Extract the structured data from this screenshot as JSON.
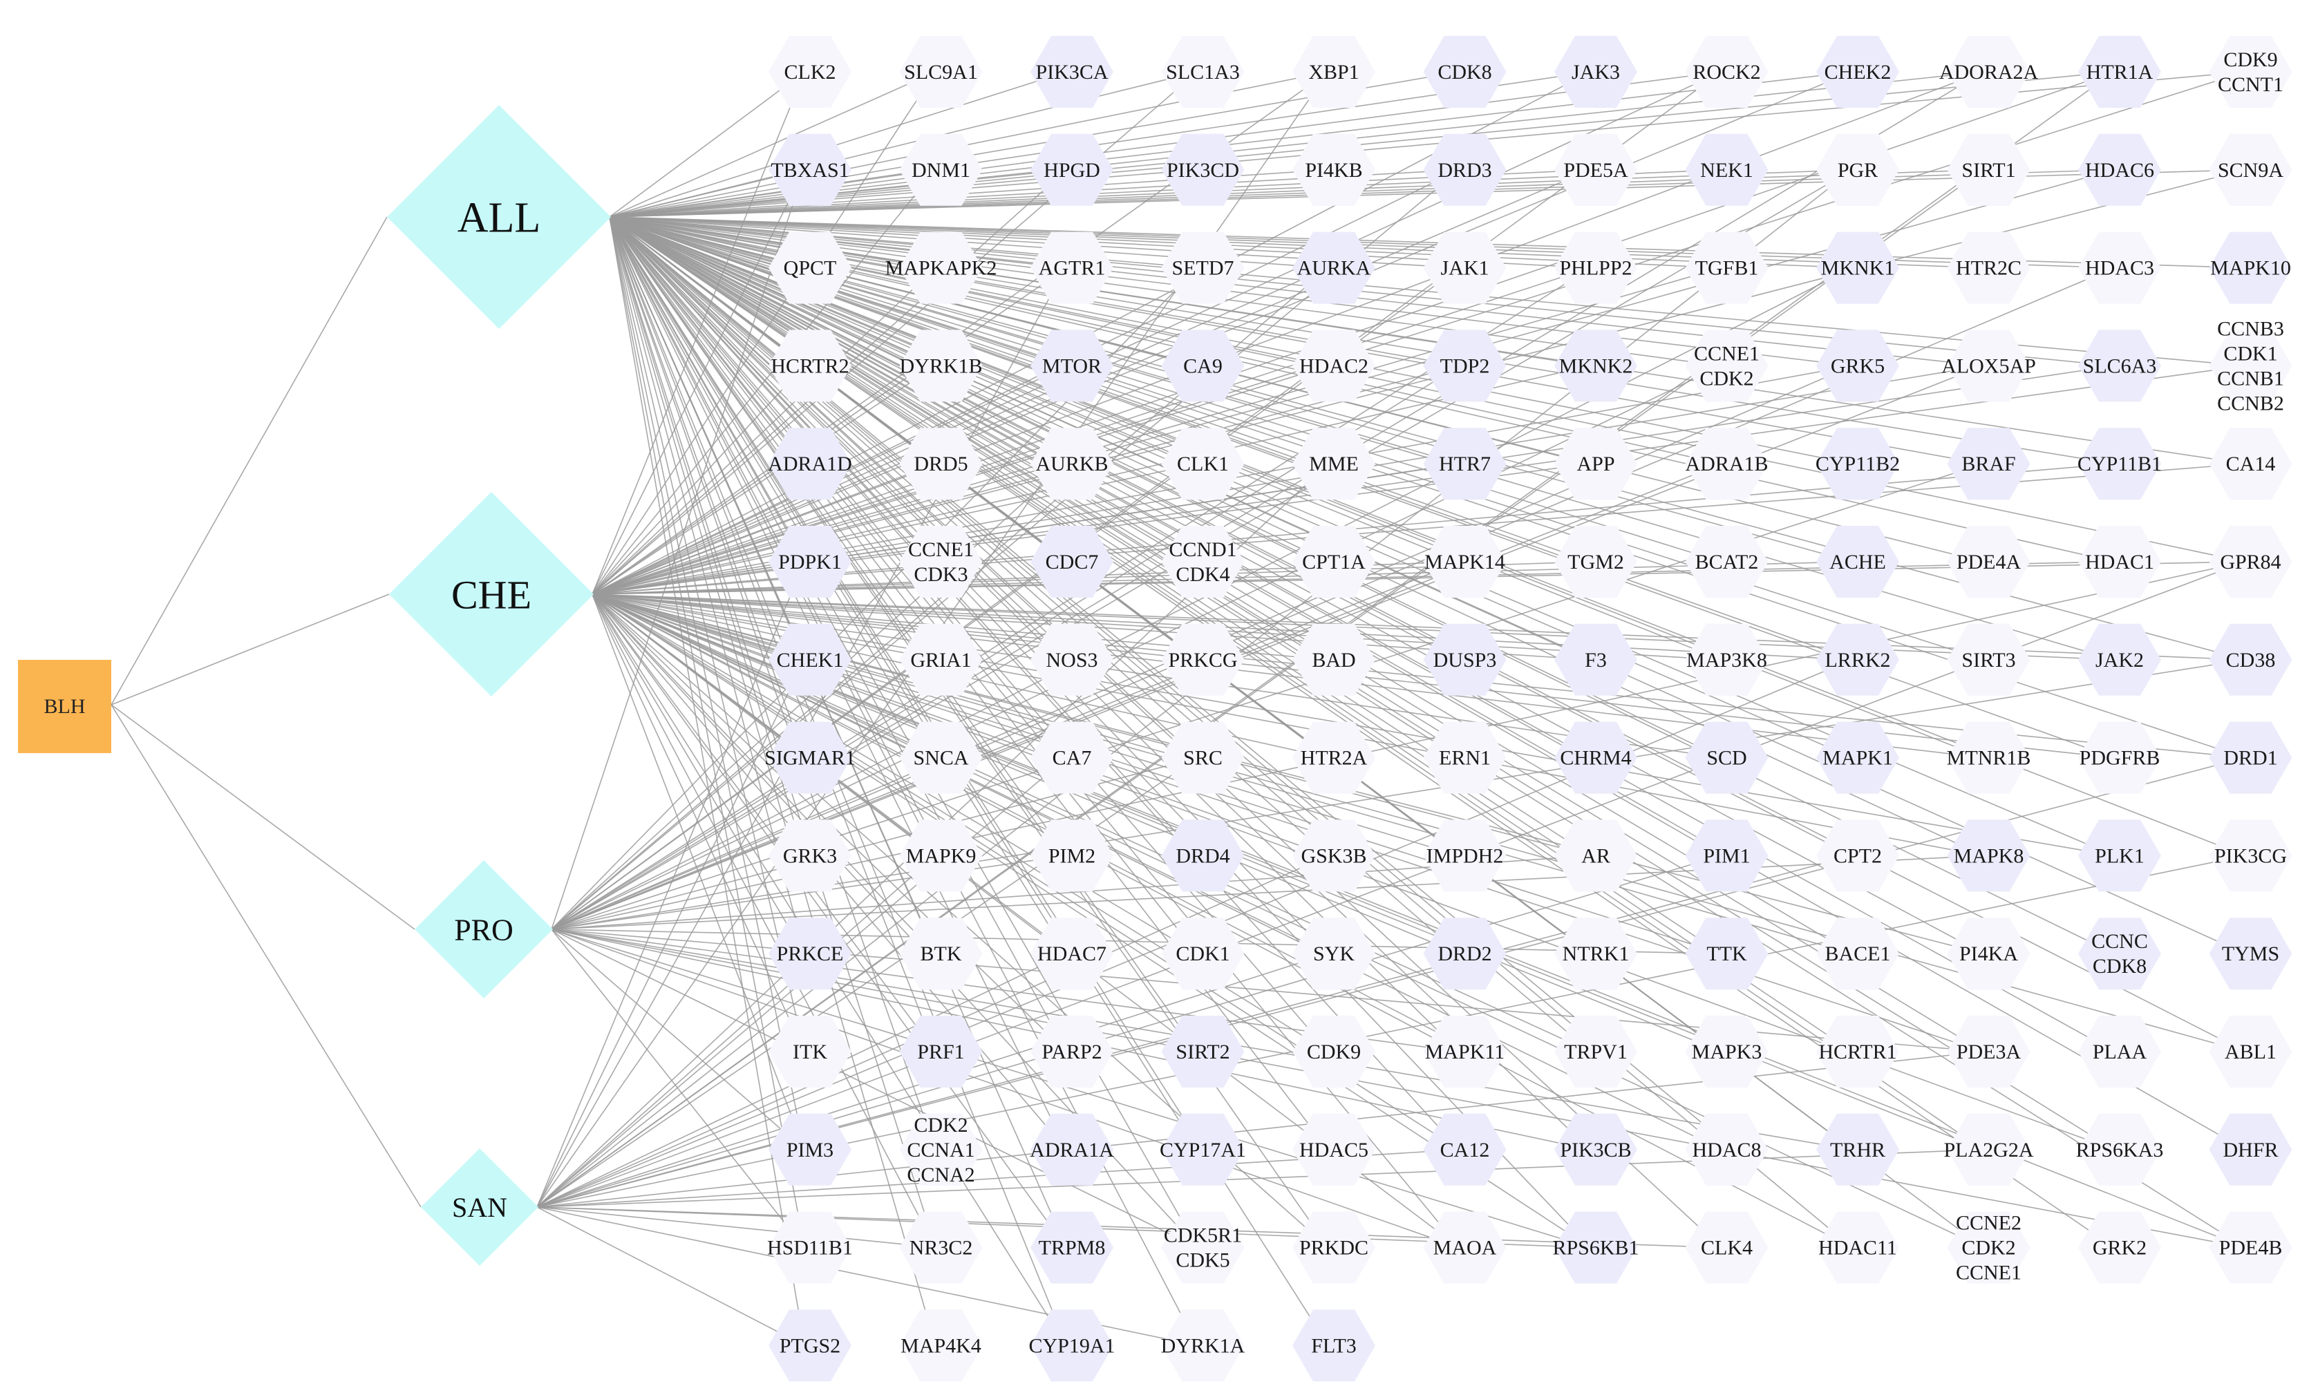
{
  "root": {
    "label": "BLH",
    "color": "#FBB550"
  },
  "hubs": [
    {
      "id": "ALL",
      "label": "ALL"
    },
    {
      "id": "CHE",
      "label": "CHE"
    },
    {
      "id": "PRO",
      "label": "PRO"
    },
    {
      "id": "SAN",
      "label": "SAN"
    }
  ],
  "colors": {
    "hub": "#C7F9F9",
    "hex_fill": "#EBEBFB",
    "faint_fill": "#F6F6FC",
    "edge": "#9a9a9a"
  },
  "rows": [
    [
      "CLK2",
      "SLC9A1",
      "PIK3CA",
      "SLC1A3",
      "XBP1",
      "CDK8",
      "JAK3",
      "ROCK2",
      "CHEK2",
      "ADORA2A",
      "HTR1A",
      "CDK9\nCCNT1"
    ],
    [
      "TBXAS1",
      "DNM1",
      "HPGD",
      "PIK3CD",
      "PI4KB",
      "DRD3",
      "PDE5A",
      "NEK1",
      "PGR",
      "SIRT1",
      "HDAC6",
      "SCN9A"
    ],
    [
      "QPCT",
      "MAPKAPK2",
      "AGTR1",
      "SETD7",
      "AURKA",
      "JAK1",
      "PHLPP2",
      "TGFB1",
      "MKNK1",
      "HTR2C",
      "HDAC3",
      "MAPK10"
    ],
    [
      "HCRTR2",
      "DYRK1B",
      "MTOR",
      "CA9",
      "HDAC2",
      "TDP2",
      "MKNK2",
      "CCNE1\nCDK2",
      "GRK5",
      "ALOX5AP",
      "SLC6A3",
      "CCNB3\nCDK1\nCCNB1\nCCNB2"
    ],
    [
      "ADRA1D",
      "DRD5",
      "AURKB",
      "CLK1",
      "MME",
      "HTR7",
      "APP",
      "ADRA1B",
      "CYP11B2",
      "BRAF",
      "CYP11B1",
      "CA14"
    ],
    [
      "PDPK1",
      "CCNE1\nCDK3",
      "CDC7",
      "CCND1\nCDK4",
      "CPT1A",
      "MAPK14",
      "TGM2",
      "BCAT2",
      "ACHE",
      "PDE4A",
      "HDAC1",
      "GPR84"
    ],
    [
      "CHEK1",
      "GRIA1",
      "NOS3",
      "PRKCG",
      "BAD",
      "DUSP3",
      "F3",
      "MAP3K8",
      "LRRK2",
      "SIRT3",
      "JAK2",
      "CD38"
    ],
    [
      "SIGMAR1",
      "SNCA",
      "CA7",
      "SRC",
      "HTR2A",
      "ERN1",
      "CHRM4",
      "SCD",
      "MAPK1",
      "MTNR1B",
      "PDGFRB",
      "DRD1"
    ],
    [
      "GRK3",
      "MAPK9",
      "PIM2",
      "DRD4",
      "GSK3B",
      "IMPDH2",
      "AR",
      "PIM1",
      "CPT2",
      "MAPK8",
      "PLK1",
      "PIK3CG"
    ],
    [
      "PRKCE",
      "BTK",
      "HDAC7",
      "CDK1",
      "SYK",
      "DRD2",
      "NTRK1",
      "TTK",
      "BACE1",
      "PI4KA",
      "CCNC\nCDK8",
      "TYMS"
    ],
    [
      "ITK",
      "PRF1",
      "PARP2",
      "SIRT2",
      "CDK9",
      "MAPK11",
      "TRPV1",
      "MAPK3",
      "HCRTR1",
      "PDE3A",
      "PLAA",
      "ABL1"
    ],
    [
      "PIM3",
      "CDK2\nCCNA1\nCCNA2",
      "ADRA1A",
      "CYP17A1",
      "HDAC5",
      "CA12",
      "PIK3CB",
      "HDAC8",
      "TRHR",
      "PLA2G2A",
      "RPS6KA3",
      "DHFR"
    ],
    [
      "HSD11B1",
      "NR3C2",
      "TRPM8",
      "CDK5R1\nCDK5",
      "PRKDC",
      "MAOA",
      "RPS6KB1",
      "CLK4",
      "HDAC11",
      "CCNE2\nCDK2\nCCNE1",
      "GRK2",
      "PDE4B"
    ],
    [
      "PTGS2",
      "MAP4K4",
      "CYP19A1",
      "DYRK1A",
      "FLT3"
    ]
  ],
  "hex_nodes": [
    "PIK3CA",
    "CDK8",
    "JAK3",
    "CHEK2",
    "HTR1A",
    "TBXAS1",
    "HPGD",
    "PIK3CD",
    "DRD3",
    "NEK1",
    "HDAC6",
    "AURKA",
    "MKNK1",
    "MAPK10",
    "MTOR",
    "CA9",
    "TDP2",
    "MKNK2",
    "GRK5",
    "SLC6A3",
    "ADRA1D",
    "HTR7",
    "CYP11B2",
    "BRAF",
    "CYP11B1",
    "PDPK1",
    "CDC7",
    "ACHE",
    "CHEK1",
    "DUSP3",
    "F3",
    "LRRK2",
    "JAK2",
    "CD38",
    "SIGMAR1",
    "CHRM4",
    "SCD",
    "MAPK1",
    "DRD1",
    "DRD4",
    "PIM1",
    "MAPK8",
    "PLK1",
    "PRKCE",
    "DRD2",
    "TTK",
    "CCNC\nCDK8",
    "TYMS",
    "PRF1",
    "SIRT2",
    "PIM3",
    "ADRA1A",
    "CYP17A1",
    "CA12",
    "PIK3CB",
    "TRHR",
    "DHFR",
    "TRPM8",
    "RPS6KB1",
    "PTGS2",
    "CYP19A1",
    "FLT3"
  ]
}
